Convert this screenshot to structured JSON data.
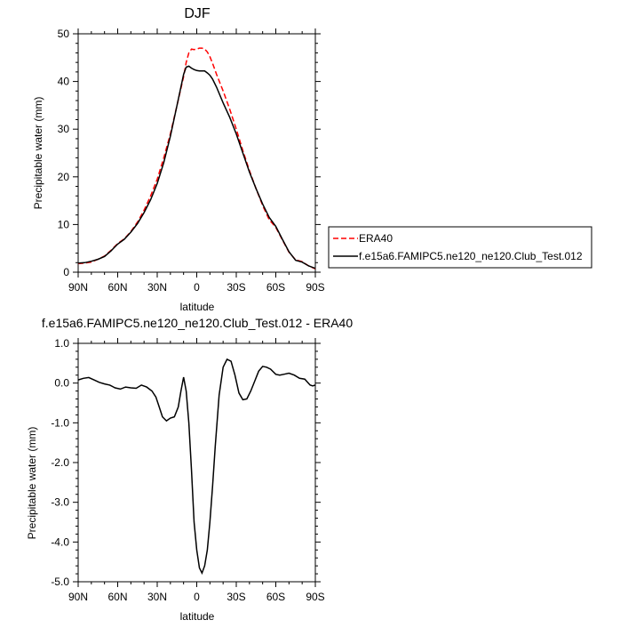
{
  "chart_data": [
    {
      "type": "line",
      "title": "DJF",
      "xlabel": "latitude",
      "ylabel": "Precipitable water (mm)",
      "xlim": [
        90,
        -90
      ],
      "ylim": [
        0,
        50
      ],
      "x_tick_values": [
        90,
        60,
        30,
        0,
        -30,
        -60,
        -90
      ],
      "x_tick_labels": [
        "90N",
        "60N",
        "30N",
        "0",
        "30S",
        "60S",
        "90S"
      ],
      "y_tick_labels": [
        "0",
        "10",
        "20",
        "30",
        "40",
        "50"
      ],
      "legend": {
        "placement": "right"
      },
      "series": [
        {
          "name": "ERA40",
          "color": "#ff0000",
          "dash": "dashed",
          "x": [
            90,
            85,
            80,
            75,
            70,
            65,
            60,
            55,
            50,
            45,
            40,
            35,
            30,
            25,
            20,
            15,
            10,
            8,
            6,
            4,
            2,
            0,
            -2,
            -4,
            -6,
            -8,
            -10,
            -12,
            -15,
            -20,
            -25,
            -30,
            -35,
            -40,
            -45,
            -50,
            -55,
            -60,
            -65,
            -70,
            -75,
            -80,
            -85,
            -90
          ],
          "y": [
            1.8,
            1.9,
            2.1,
            2.7,
            3.4,
            4.6,
            6.0,
            7.0,
            8.5,
            10.5,
            13.0,
            16.0,
            19.5,
            24.0,
            29.0,
            35.0,
            41.0,
            44.0,
            46.0,
            46.8,
            46.7,
            46.8,
            47.0,
            47.0,
            46.8,
            46.2,
            45.2,
            43.8,
            41.5,
            38.0,
            34.2,
            30.0,
            25.5,
            21.3,
            17.5,
            14.0,
            11.0,
            9.4,
            6.8,
            4.2,
            2.6,
            2.2,
            1.3,
            0.7
          ]
        },
        {
          "name": "f.e15a6.FAMIPC5.ne120_ne120.Club_Test.012",
          "color": "#000000",
          "dash": "solid",
          "x": [
            90,
            85,
            80,
            75,
            70,
            65,
            60,
            55,
            50,
            45,
            40,
            35,
            30,
            25,
            20,
            15,
            10,
            8,
            6,
            4,
            2,
            0,
            -2,
            -4,
            -6,
            -8,
            -10,
            -12,
            -15,
            -20,
            -25,
            -30,
            -35,
            -40,
            -45,
            -50,
            -55,
            -60,
            -65,
            -70,
            -75,
            -80,
            -85,
            -90
          ],
          "y": [
            1.9,
            2.0,
            2.3,
            2.7,
            3.3,
            4.5,
            5.9,
            6.9,
            8.4,
            10.2,
            12.5,
            15.2,
            18.6,
            23.0,
            28.5,
            35.0,
            41.5,
            43.0,
            43.2,
            42.8,
            42.5,
            42.3,
            42.2,
            42.2,
            42.2,
            41.8,
            41.3,
            40.5,
            38.8,
            35.5,
            32.5,
            29.0,
            25.0,
            21.0,
            17.5,
            14.3,
            11.5,
            9.6,
            6.9,
            4.3,
            2.5,
            2.1,
            1.3,
            0.8
          ]
        }
      ]
    },
    {
      "type": "line",
      "title": "f.e15a6.FAMIPC5.ne120_ne120.Club_Test.012 - ERA40",
      "xlabel": "latitude",
      "ylabel": "Precipitable water (mm)",
      "xlim": [
        90,
        -90
      ],
      "ylim": [
        -5.0,
        1.0
      ],
      "x_tick_values": [
        90,
        60,
        30,
        0,
        -30,
        -60,
        -90
      ],
      "x_tick_labels": [
        "90N",
        "60N",
        "30N",
        "0",
        "30S",
        "60S",
        "90S"
      ],
      "y_tick_labels": [
        "-5.0",
        "-4.0",
        "-3.0",
        "-2.0",
        "-1.0",
        "0.0",
        "1.0"
      ],
      "series": [
        {
          "color": "#000000",
          "dash": "solid",
          "x": [
            90,
            86,
            82,
            78,
            74,
            70,
            66,
            62,
            58,
            54,
            50,
            46,
            42,
            38,
            34,
            31,
            29,
            26,
            23,
            20,
            17,
            14,
            12,
            10,
            8,
            6,
            4,
            2,
            0,
            -2,
            -4,
            -6,
            -8,
            -10,
            -12,
            -14,
            -17,
            -20,
            -23,
            -26,
            -29,
            -32,
            -35,
            -38,
            -41,
            -44,
            -47,
            -50,
            -53,
            -56,
            -60,
            -63,
            -66,
            -70,
            -74,
            -78,
            -82,
            -86,
            -88,
            -90
          ],
          "y": [
            0.08,
            0.12,
            0.14,
            0.08,
            0.02,
            -0.02,
            -0.05,
            -0.12,
            -0.15,
            -0.1,
            -0.12,
            -0.13,
            -0.05,
            -0.1,
            -0.2,
            -0.35,
            -0.55,
            -0.85,
            -0.95,
            -0.88,
            -0.85,
            -0.6,
            -0.2,
            0.15,
            -0.2,
            -1.0,
            -2.2,
            -3.5,
            -4.2,
            -4.65,
            -4.78,
            -4.6,
            -4.2,
            -3.5,
            -2.6,
            -1.6,
            -0.3,
            0.4,
            0.6,
            0.55,
            0.2,
            -0.25,
            -0.42,
            -0.4,
            -0.2,
            0.05,
            0.3,
            0.42,
            0.4,
            0.35,
            0.22,
            0.2,
            0.22,
            0.25,
            0.2,
            0.12,
            0.1,
            -0.05,
            -0.07,
            -0.05
          ]
        }
      ]
    }
  ]
}
